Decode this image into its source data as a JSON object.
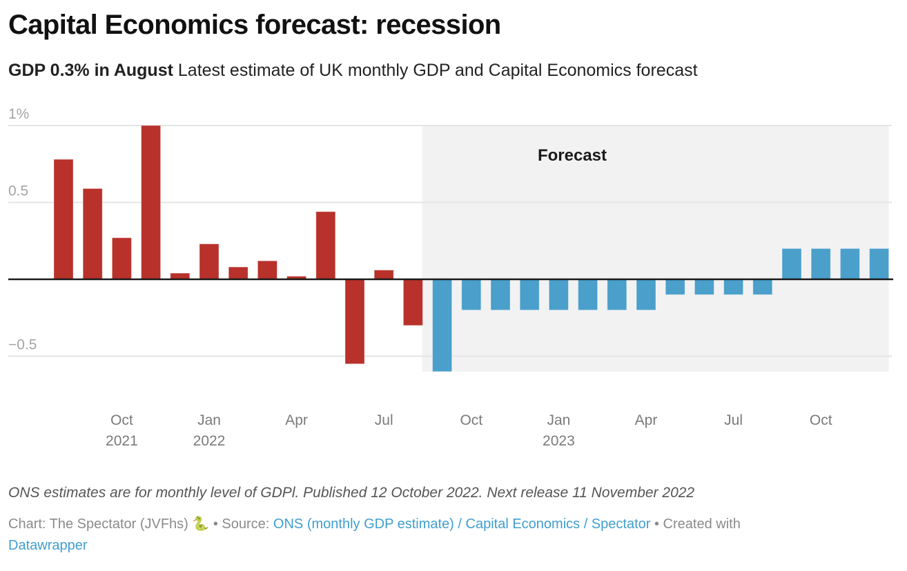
{
  "header": {
    "title": "Capital Economics forecast: recession",
    "subtitle_bold": "GDP 0.3% in August",
    "subtitle_rest": " Latest estimate of UK monthly GDP and Capital Economics forecast"
  },
  "colors": {
    "actual": "#b8312b",
    "forecast": "#4a9fcb",
    "forecast_band": "#f2f2f2",
    "gridline": "#e4e4e4",
    "baseline": "#1a1a1a",
    "axis_text": "#7a7a7a",
    "link": "#3f9ecf"
  },
  "chart_data": {
    "type": "bar",
    "title": "Capital Economics forecast: recession",
    "xlabel": "",
    "ylabel": "",
    "ylim": [
      -0.6,
      1.0
    ],
    "y_ticks": [
      {
        "value": 1.0,
        "label": "1%"
      },
      {
        "value": 0.5,
        "label": "0.5"
      },
      {
        "value": -0.5,
        "label": "−0.5"
      }
    ],
    "grid": true,
    "categories": [
      "Aug 2021",
      "Sep 2021",
      "Oct 2021",
      "Nov 2021",
      "Dec 2021",
      "Jan 2022",
      "Feb 2022",
      "Mar 2022",
      "Apr 2022",
      "May 2022",
      "Jun 2022",
      "Jul 2022",
      "Aug 2022",
      "Sep 2022",
      "Oct 2022",
      "Nov 2022",
      "Dec 2022",
      "Jan 2023",
      "Feb 2023",
      "Mar 2023",
      "Apr 2023",
      "May 2023",
      "Jun 2023",
      "Jul 2023",
      "Aug 2023",
      "Sep 2023",
      "Oct 2023",
      "Nov 2023",
      "Dec 2023"
    ],
    "series": [
      {
        "name": "ONS estimate",
        "color": "#b8312b",
        "values": [
          0.78,
          0.59,
          0.27,
          1.0,
          0.04,
          0.23,
          0.08,
          0.12,
          0.02,
          0.44,
          -0.55,
          0.06,
          -0.3,
          null,
          null,
          null,
          null,
          null,
          null,
          null,
          null,
          null,
          null,
          null,
          null,
          null,
          null,
          null,
          null
        ]
      },
      {
        "name": "Capital Economics forecast",
        "color": "#4a9fcb",
        "values": [
          null,
          null,
          null,
          null,
          null,
          null,
          null,
          null,
          null,
          null,
          null,
          null,
          null,
          -0.6,
          -0.2,
          -0.2,
          -0.2,
          -0.2,
          -0.2,
          -0.2,
          -0.2,
          -0.1,
          -0.1,
          -0.1,
          -0.1,
          0.2,
          0.2,
          0.2,
          0.2
        ]
      }
    ],
    "x_tick_labels": [
      {
        "category": "Oct 2021",
        "month": "Oct",
        "year": "2021"
      },
      {
        "category": "Jan 2022",
        "month": "Jan",
        "year": "2022"
      },
      {
        "category": "Apr 2022",
        "month": "Apr",
        "year": ""
      },
      {
        "category": "Jul 2022",
        "month": "Jul",
        "year": ""
      },
      {
        "category": "Oct 2022",
        "month": "Oct",
        "year": ""
      },
      {
        "category": "Jan 2023",
        "month": "Jan",
        "year": "2023"
      },
      {
        "category": "Apr 2023",
        "month": "Apr",
        "year": ""
      },
      {
        "category": "Jul 2023",
        "month": "Jul",
        "year": ""
      },
      {
        "category": "Oct 2023",
        "month": "Oct",
        "year": ""
      }
    ],
    "annotations": [
      {
        "text": "Forecast",
        "region_start": "Sep 2022",
        "region_end": "Dec 2023"
      }
    ],
    "legend": "none"
  },
  "footer": {
    "notes": "ONS estimates are for monthly level of GDPl. Published 12 October 2022. Next release 11 November 2022",
    "chart_credit": "Chart: The Spectator (JVFhs) ",
    "credit_icon": "🐍",
    "source_prefix": " • Source: ",
    "source_link": "ONS (monthly GDP estimate) / Capital Economics / Spectator",
    "created_prefix": " • Created with ",
    "created_link": "Datawrapper"
  }
}
